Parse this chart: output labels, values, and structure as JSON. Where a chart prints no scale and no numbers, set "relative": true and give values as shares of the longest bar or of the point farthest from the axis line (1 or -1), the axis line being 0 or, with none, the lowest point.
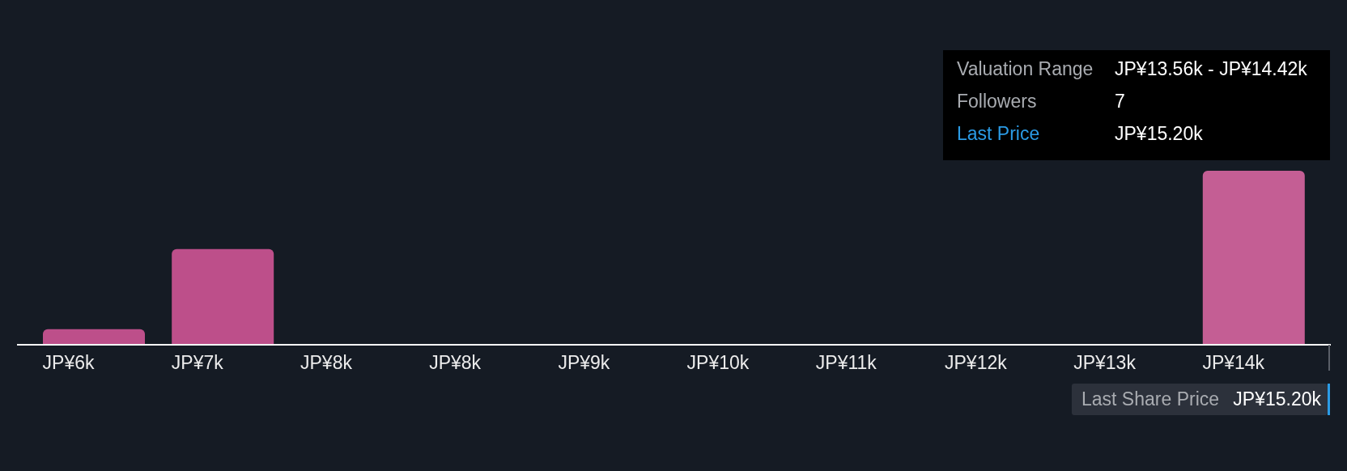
{
  "chart_data": {
    "type": "bar",
    "relative": true,
    "categories": [
      "JP¥6k",
      "JP¥7k",
      "JP¥8k",
      "JP¥8k",
      "JP¥9k",
      "JP¥10k",
      "JP¥11k",
      "JP¥12k",
      "JP¥13k",
      "JP¥14k"
    ],
    "values": [
      0.09,
      0.55,
      0,
      0,
      0,
      0,
      0,
      0,
      0,
      1
    ],
    "colors": [
      "#bd4f8a",
      "#bd4f8a",
      "#bd4f8a",
      "#bd4f8a",
      "#bd4f8a",
      "#bd4f8a",
      "#bd4f8a",
      "#bd4f8a",
      "#bd4f8a",
      "#c45e94"
    ],
    "annotations": [
      "Valuation Range",
      "JP¥13.56k - JP¥14.42k",
      "Followers",
      "7",
      "Last Price",
      "JP¥15.20k",
      "Last Share Price",
      "JP¥15.20k"
    ]
  }
}
